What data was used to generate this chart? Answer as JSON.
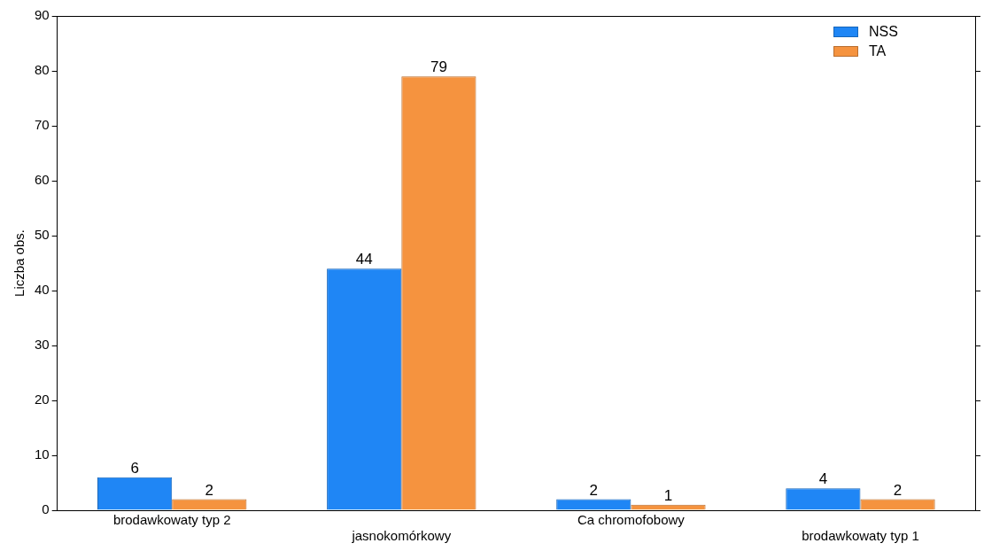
{
  "chart_data": {
    "type": "bar",
    "ylabel": "Liczba obs.",
    "categories": [
      "brodawkowaty typ 2",
      "jasnokomórkowy",
      "Ca chromofobowy",
      "brodawkowaty typ 1"
    ],
    "series": [
      {
        "name": "NSS",
        "color": "#1f86f5",
        "values": [
          6,
          44,
          2,
          4
        ]
      },
      {
        "name": "TA",
        "color": "#f5933f",
        "values": [
          2,
          79,
          1,
          2
        ]
      }
    ],
    "ylim": [
      0,
      90
    ],
    "yticks": [
      0,
      10,
      20,
      30,
      40,
      50,
      60,
      70,
      80,
      90
    ],
    "grid": false,
    "legend": "top right",
    "data_labels": true
  }
}
